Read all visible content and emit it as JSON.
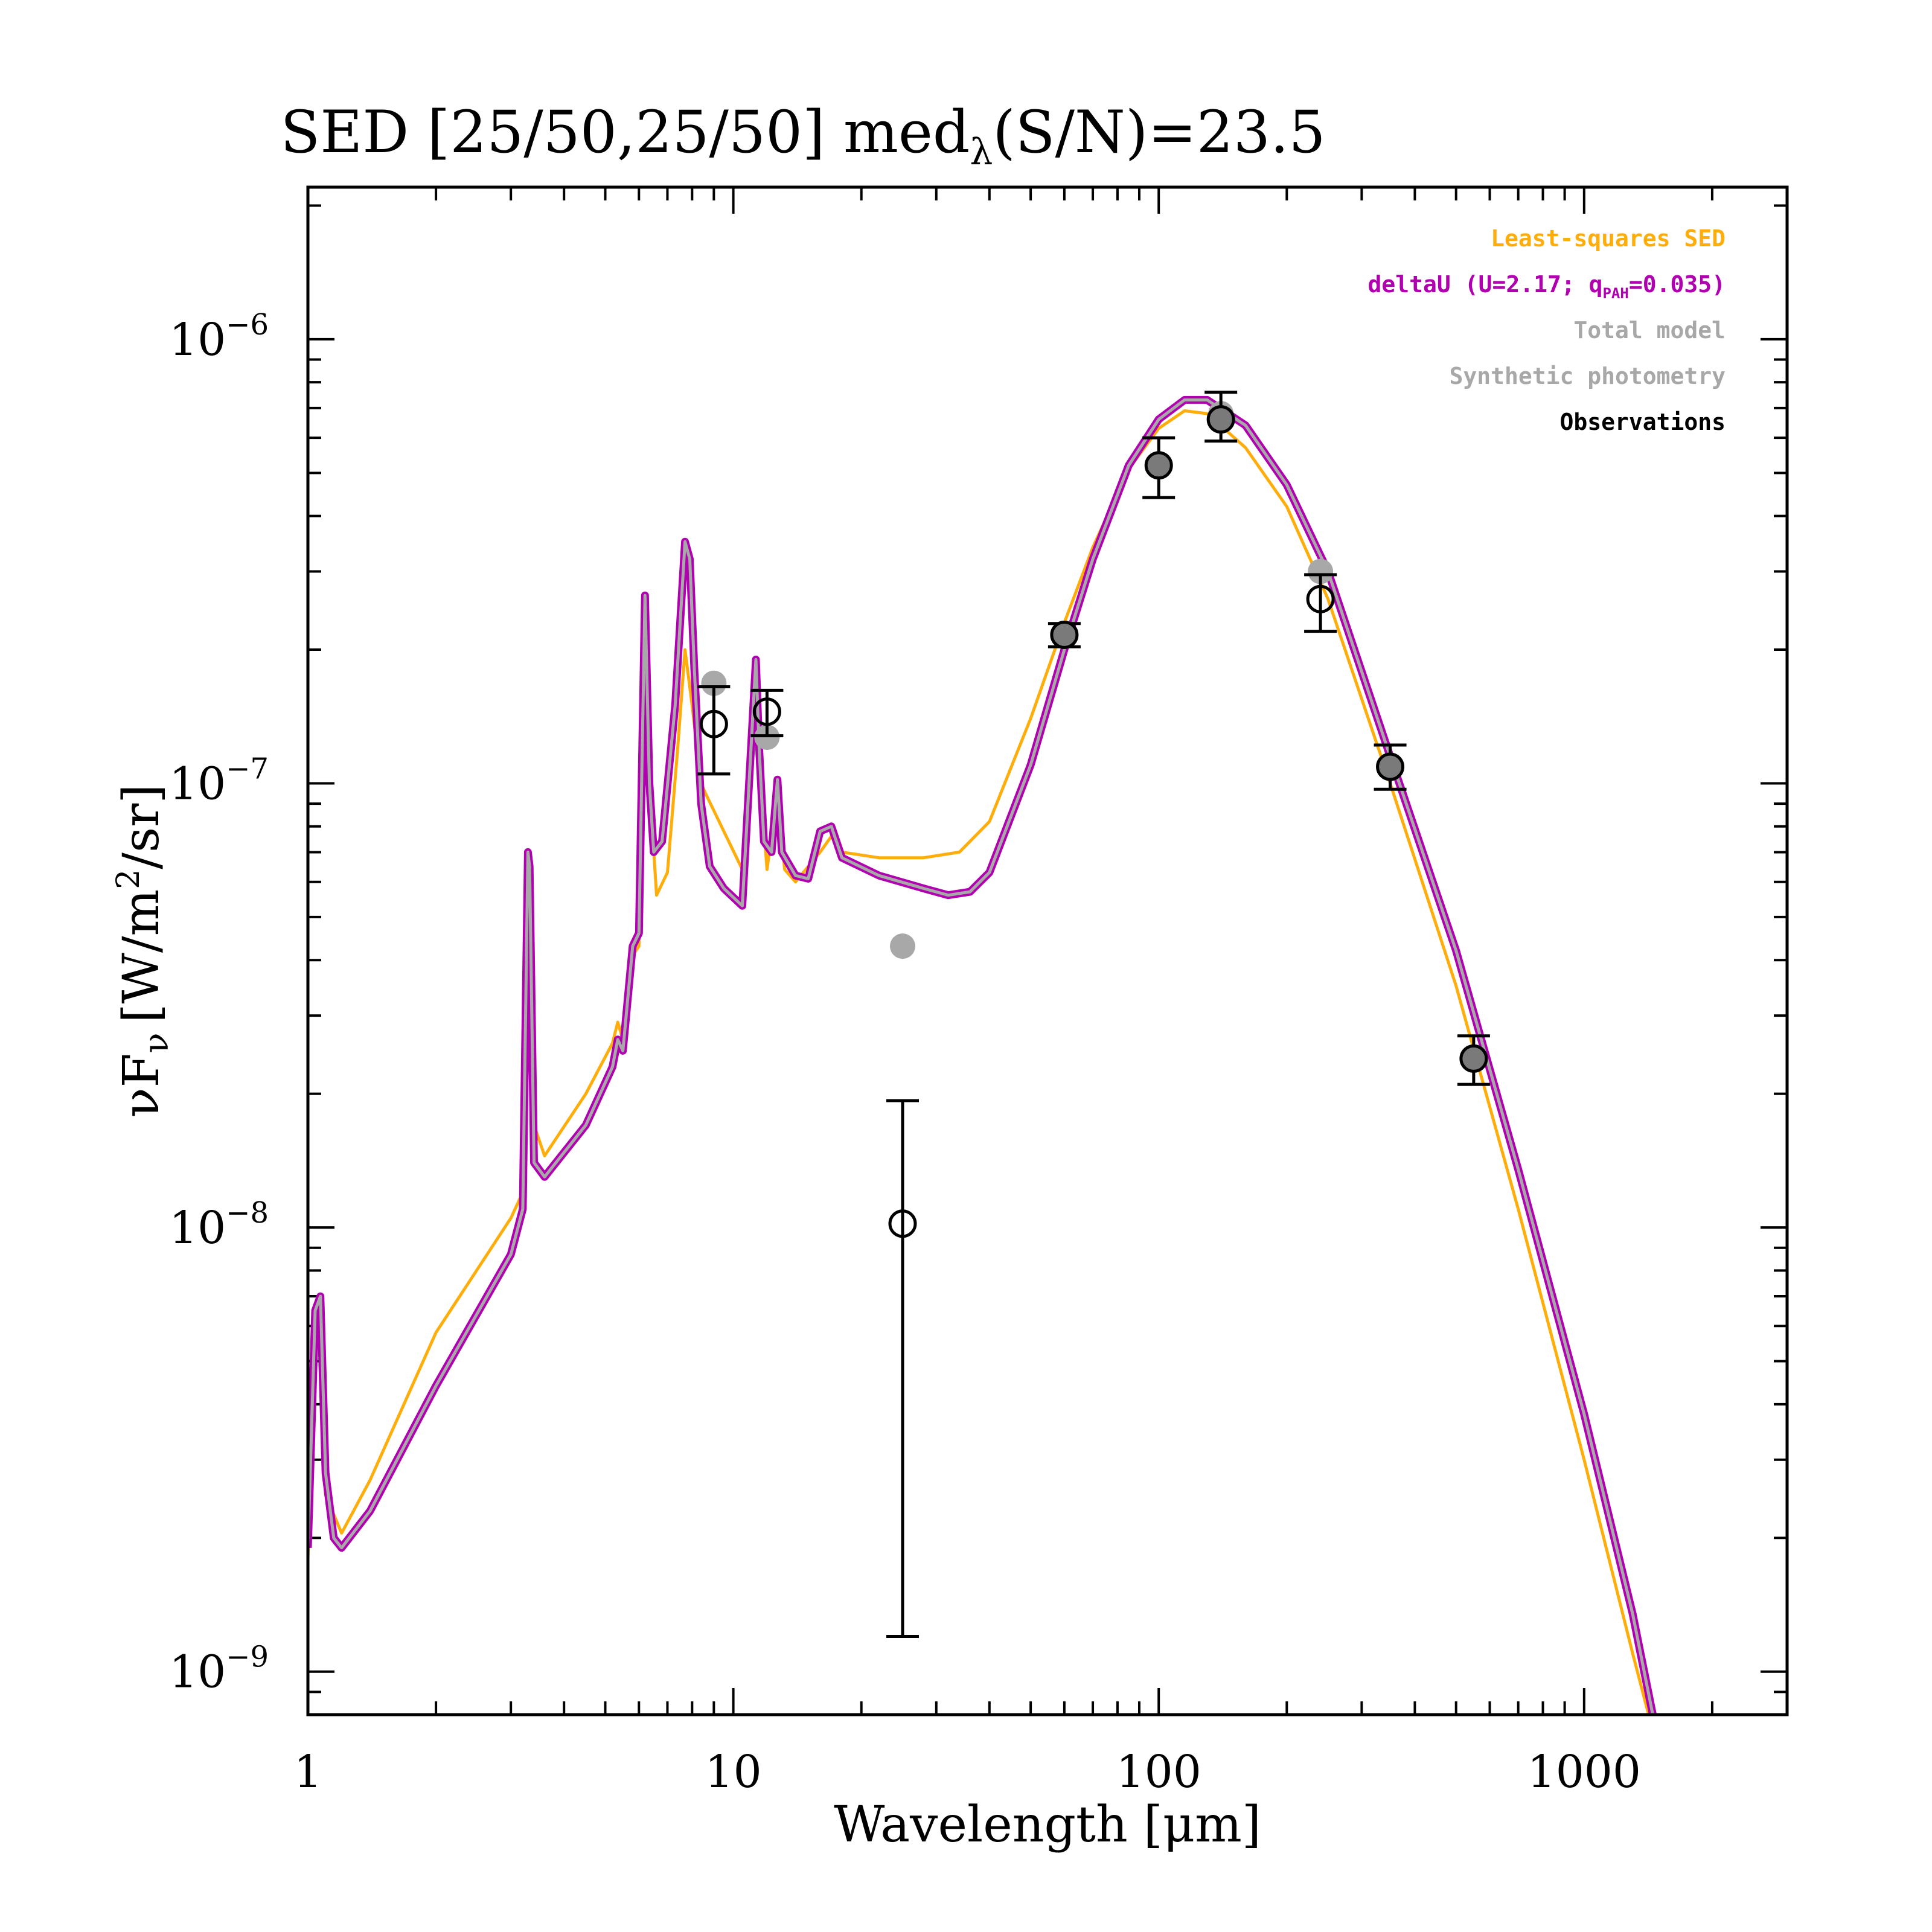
{
  "chart_data": {
    "type": "line",
    "title": "SED [25/50,25/50] med",
    "title_sub": "λ",
    "title_tail": "(S/N)=23.5",
    "xlabel": "Wavelength [μm]",
    "ylabel": "νF",
    "ylabel_sub": "ν",
    "ylabel_tail": "[W/m",
    "ylabel_sup": "2",
    "ylabel_end": "/sr]",
    "x_scale": "log",
    "y_scale": "log",
    "xlim": [
      1,
      3000
    ],
    "ylim": [
      8e-10,
      2.2e-06
    ],
    "x_ticks": [
      {
        "value": 1,
        "label": "1"
      },
      {
        "value": 10,
        "label": "10"
      },
      {
        "value": 100,
        "label": "100"
      },
      {
        "value": 1000,
        "label": "1000"
      }
    ],
    "y_ticks": [
      {
        "value": 1e-09,
        "base": "10",
        "exp": "−9"
      },
      {
        "value": 1e-08,
        "base": "10",
        "exp": "−8"
      },
      {
        "value": 1e-07,
        "base": "10",
        "exp": "−7"
      },
      {
        "value": 1e-06,
        "base": "10",
        "exp": "−6"
      }
    ],
    "legend_position": "top-right",
    "legend": [
      {
        "text": "Least-squares SED",
        "color": "#ffad0a"
      },
      {
        "text": "deltaU (U=2.17; q",
        "sub": "PAH",
        "tail": "=0.035)",
        "color": "#b000b0"
      },
      {
        "text": "Total model",
        "color": "#a8a8a8"
      },
      {
        "text": "Synthetic photometry",
        "color": "#a8a8a8"
      },
      {
        "text": "Observations",
        "color": "#000000"
      }
    ],
    "series": [
      {
        "name": "Least-squares SED",
        "color": "#ffad0a",
        "points": [
          [
            1.0,
            1.8e-09
          ],
          [
            1.04,
            5.5e-09
          ],
          [
            1.07,
            6e-09
          ],
          [
            1.1,
            2.5e-09
          ],
          [
            1.2,
            2.05e-09
          ],
          [
            1.4,
            2.7e-09
          ],
          [
            2.0,
            5.8e-09
          ],
          [
            3.0,
            1.05e-08
          ],
          [
            3.2,
            1.2e-08
          ],
          [
            3.29,
            5.5e-08
          ],
          [
            3.32,
            6e-08
          ],
          [
            3.4,
            1.7e-08
          ],
          [
            3.6,
            1.45e-08
          ],
          [
            4.5,
            2e-08
          ],
          [
            5.2,
            2.6e-08
          ],
          [
            5.35,
            2.9e-08
          ],
          [
            5.5,
            2.65e-08
          ],
          [
            5.8,
            4.1e-08
          ],
          [
            6.0,
            4.3e-08
          ],
          [
            6.2,
            2e-07
          ],
          [
            6.35,
            1e-07
          ],
          [
            6.6,
            5.6e-08
          ],
          [
            7.0,
            6.3e-08
          ],
          [
            7.4,
            1.2e-07
          ],
          [
            7.7,
            2e-07
          ],
          [
            8.0,
            1.5e-07
          ],
          [
            8.4,
            1e-07
          ],
          [
            8.6,
            9.5e-08
          ],
          [
            9.5,
            7.8e-08
          ],
          [
            10.5,
            6.4e-08
          ],
          [
            11.3,
            1.75e-07
          ],
          [
            11.6,
            1e-07
          ],
          [
            12.0,
            6.4e-08
          ],
          [
            12.7,
            9.5e-08
          ],
          [
            13.2,
            6.4e-08
          ],
          [
            14.0,
            6e-08
          ],
          [
            16.0,
            7e-08
          ],
          [
            17.0,
            7.6e-08
          ],
          [
            18.0,
            7e-08
          ],
          [
            22.0,
            6.8e-08
          ],
          [
            28.0,
            6.8e-08
          ],
          [
            34.0,
            7e-08
          ],
          [
            40.0,
            8.2e-08
          ],
          [
            50.0,
            1.4e-07
          ],
          [
            60.0,
            2.3e-07
          ],
          [
            70.0,
            3.4e-07
          ],
          [
            85.0,
            5.1e-07
          ],
          [
            100.0,
            6.3e-07
          ],
          [
            115.0,
            6.9e-07
          ],
          [
            130.0,
            6.8e-07
          ],
          [
            160.0,
            5.7e-07
          ],
          [
            200.0,
            4.2e-07
          ],
          [
            250.0,
            2.6e-07
          ],
          [
            350.0,
            1e-07
          ],
          [
            500.0,
            3.5e-08
          ],
          [
            700.0,
            1.1e-08
          ],
          [
            1000.0,
            3e-09
          ],
          [
            1300.0,
            1.1e-09
          ],
          [
            1500.0,
            6.5e-10
          ]
        ]
      },
      {
        "name": "deltaU (U=2.17; qPAH=0.035)",
        "color": "#b000b0",
        "points": [
          [
            1.0,
            1.9e-09
          ],
          [
            1.04,
            6.5e-09
          ],
          [
            1.07,
            7e-09
          ],
          [
            1.1,
            2.8e-09
          ],
          [
            1.15,
            2e-09
          ],
          [
            1.2,
            1.9e-09
          ],
          [
            1.4,
            2.3e-09
          ],
          [
            2.0,
            4.4e-09
          ],
          [
            3.0,
            8.7e-09
          ],
          [
            3.2,
            1.1e-08
          ],
          [
            3.29,
            7e-08
          ],
          [
            3.32,
            6.5e-08
          ],
          [
            3.4,
            1.4e-08
          ],
          [
            3.6,
            1.3e-08
          ],
          [
            4.5,
            1.7e-08
          ],
          [
            5.2,
            2.3e-08
          ],
          [
            5.35,
            2.65e-08
          ],
          [
            5.5,
            2.5e-08
          ],
          [
            5.8,
            4.3e-08
          ],
          [
            6.0,
            4.6e-08
          ],
          [
            6.2,
            2.65e-07
          ],
          [
            6.35,
            1e-07
          ],
          [
            6.5,
            7e-08
          ],
          [
            6.8,
            7.4e-08
          ],
          [
            7.3,
            1.5e-07
          ],
          [
            7.7,
            3.5e-07
          ],
          [
            7.9,
            3.2e-07
          ],
          [
            8.1,
            1.8e-07
          ],
          [
            8.4,
            9e-08
          ],
          [
            8.8,
            6.5e-08
          ],
          [
            9.5,
            5.8e-08
          ],
          [
            10.5,
            5.3e-08
          ],
          [
            11.3,
            1.9e-07
          ],
          [
            11.5,
            1.2e-07
          ],
          [
            11.8,
            7.4e-08
          ],
          [
            12.3,
            7e-08
          ],
          [
            12.7,
            1.02e-07
          ],
          [
            13.0,
            7e-08
          ],
          [
            14.0,
            6.2e-08
          ],
          [
            15.0,
            6.1e-08
          ],
          [
            16.0,
            7.8e-08
          ],
          [
            17.0,
            8e-08
          ],
          [
            18.0,
            6.8e-08
          ],
          [
            22.0,
            6.2e-08
          ],
          [
            28.0,
            5.8e-08
          ],
          [
            32.0,
            5.6e-08
          ],
          [
            36.0,
            5.7e-08
          ],
          [
            40.0,
            6.3e-08
          ],
          [
            50.0,
            1.1e-07
          ],
          [
            60.0,
            2e-07
          ],
          [
            70.0,
            3.2e-07
          ],
          [
            85.0,
            5.2e-07
          ],
          [
            100.0,
            6.6e-07
          ],
          [
            115.0,
            7.3e-07
          ],
          [
            130.0,
            7.3e-07
          ],
          [
            160.0,
            6.4e-07
          ],
          [
            200.0,
            4.7e-07
          ],
          [
            250.0,
            3e-07
          ],
          [
            350.0,
            1.15e-07
          ],
          [
            500.0,
            4.2e-08
          ],
          [
            700.0,
            1.35e-08
          ],
          [
            1000.0,
            3.8e-09
          ],
          [
            1300.0,
            1.35e-09
          ],
          [
            1600.0,
            5e-10
          ]
        ]
      }
    ],
    "synthetic_photometry": [
      [
        9.0,
        1.68e-07
      ],
      [
        12.0,
        1.27e-07
      ],
      [
        25.0,
        4.3e-08
      ],
      [
        60.0,
        2.16e-07
      ],
      [
        100.0,
        5.2e-07
      ],
      [
        140.0,
        6.8e-07
      ],
      [
        240.0,
        3e-07
      ],
      [
        350.0,
        1.09e-07
      ],
      [
        550.0,
        2.4e-08
      ]
    ],
    "observations": [
      {
        "x": 9.0,
        "y": 1.36e-07,
        "lo": 1.05e-07,
        "hi": 1.65e-07
      },
      {
        "x": 12.0,
        "y": 1.45e-07,
        "lo": 1.28e-07,
        "hi": 1.62e-07
      },
      {
        "x": 25.0,
        "y": 1.02e-08,
        "lo": 1.2e-09,
        "hi": 1.93e-08
      },
      {
        "x": 60.0,
        "y": 2.16e-07,
        "lo": 2.03e-07,
        "hi": 2.29e-07
      },
      {
        "x": 100.0,
        "y": 5.2e-07,
        "lo": 4.4e-07,
        "hi": 6e-07
      },
      {
        "x": 140.0,
        "y": 6.6e-07,
        "lo": 5.9e-07,
        "hi": 7.6e-07
      },
      {
        "x": 240.0,
        "y": 2.6e-07,
        "lo": 2.2e-07,
        "hi": 2.95e-07
      },
      {
        "x": 350.0,
        "y": 1.09e-07,
        "lo": 9.7e-08,
        "hi": 1.22e-07
      },
      {
        "x": 550.0,
        "y": 2.4e-08,
        "lo": 2.1e-08,
        "hi": 2.7e-08
      }
    ],
    "observation_filled": [
      false,
      false,
      false,
      true,
      true,
      true,
      false,
      true,
      true
    ]
  }
}
